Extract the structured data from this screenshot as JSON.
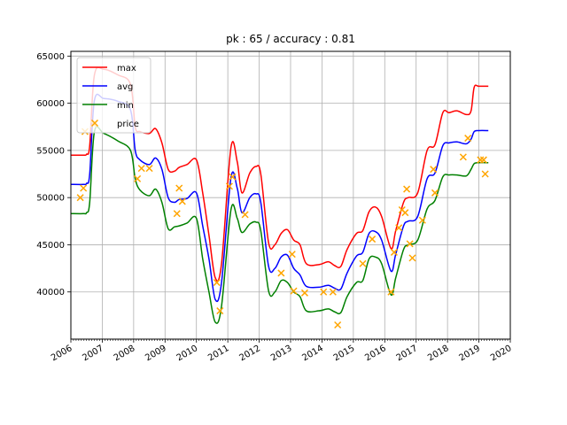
{
  "chart_data": {
    "type": "line",
    "title": "pk : 65 / accuracy : 0.81",
    "xlabel": "",
    "ylabel": "",
    "xlim": [
      2006.0,
      2020.0
    ],
    "ylim": [
      35000,
      65500
    ],
    "grid": true,
    "legend_position": "top-left",
    "x_ticks": [
      "2006",
      "2007",
      "2008",
      "2009",
      "2010",
      "2011",
      "2012",
      "2013",
      "2014",
      "2015",
      "2016",
      "2017",
      "2018",
      "2019",
      "2020"
    ],
    "y_ticks": [
      "40000",
      "45000",
      "50000",
      "55000",
      "60000",
      "65000"
    ],
    "colors": {
      "max": "#ff0000",
      "avg": "#0000ff",
      "min": "#008000",
      "price": "#ffa500"
    },
    "series": [
      {
        "name": "max",
        "x": [
          2006.0,
          2006.4,
          2006.5,
          2006.6,
          2006.75,
          2007.05,
          2007.5,
          2007.9,
          2008.05,
          2008.2,
          2008.5,
          2008.7,
          2008.9,
          2009.1,
          2009.3,
          2009.45,
          2009.7,
          2010.0,
          2010.2,
          2010.4,
          2010.6,
          2010.8,
          2011.1,
          2011.3,
          2011.45,
          2011.7,
          2011.9,
          2012.05,
          2012.3,
          2012.5,
          2012.7,
          2012.9,
          2013.1,
          2013.3,
          2013.5,
          2013.9,
          2014.2,
          2014.4,
          2014.6,
          2014.8,
          2015.1,
          2015.3,
          2015.5,
          2015.7,
          2015.9,
          2016.2,
          2016.35,
          2016.6,
          2016.75,
          2017.05,
          2017.35,
          2017.6,
          2017.85,
          2018.05,
          2018.3,
          2018.6,
          2018.75,
          2018.85,
          2019.0,
          2019.3
        ],
        "y": [
          54500,
          54500,
          54600,
          55500,
          63000,
          63600,
          63000,
          62000,
          57500,
          57000,
          56800,
          57300,
          55800,
          53000,
          52800,
          53200,
          53500,
          54000,
          50500,
          46000,
          41500,
          43000,
          55300,
          53800,
          50500,
          52600,
          53300,
          52500,
          45200,
          45000,
          46200,
          46600,
          45500,
          45000,
          43000,
          42900,
          43200,
          42800,
          42700,
          44500,
          46200,
          46500,
          48500,
          49000,
          48000,
          44600,
          46500,
          49500,
          50000,
          50500,
          55000,
          55600,
          59000,
          59000,
          59200,
          58800,
          59200,
          61700,
          61800,
          61800
        ]
      },
      {
        "name": "avg",
        "x": [
          2006.0,
          2006.4,
          2006.5,
          2006.6,
          2006.75,
          2007.05,
          2007.5,
          2007.9,
          2008.05,
          2008.2,
          2008.5,
          2008.7,
          2008.9,
          2009.1,
          2009.3,
          2009.45,
          2009.7,
          2010.0,
          2010.2,
          2010.4,
          2010.6,
          2010.8,
          2011.1,
          2011.3,
          2011.45,
          2011.7,
          2011.9,
          2012.05,
          2012.3,
          2012.5,
          2012.7,
          2012.9,
          2013.1,
          2013.3,
          2013.5,
          2013.9,
          2014.2,
          2014.4,
          2014.6,
          2014.8,
          2015.1,
          2015.3,
          2015.5,
          2015.7,
          2015.9,
          2016.2,
          2016.35,
          2016.6,
          2016.75,
          2017.05,
          2017.35,
          2017.6,
          2017.85,
          2018.05,
          2018.3,
          2018.6,
          2018.75,
          2018.85,
          2019.0,
          2019.3
        ],
        "y": [
          51400,
          51400,
          51500,
          52500,
          60300,
          60500,
          60200,
          59300,
          55000,
          54000,
          53500,
          54200,
          53000,
          50000,
          49500,
          49800,
          49900,
          50500,
          47000,
          43500,
          39200,
          41000,
          52100,
          51000,
          48400,
          50000,
          50400,
          49500,
          42700,
          42500,
          43700,
          43900,
          42500,
          41800,
          40600,
          40500,
          40700,
          40400,
          40300,
          42000,
          43800,
          44200,
          46200,
          46400,
          45500,
          42200,
          44000,
          47000,
          47500,
          48000,
          52000,
          52600,
          55500,
          55800,
          55900,
          55700,
          56200,
          57000,
          57100,
          57100
        ]
      },
      {
        "name": "min",
        "x": [
          2006.0,
          2006.4,
          2006.5,
          2006.6,
          2006.75,
          2007.05,
          2007.5,
          2007.9,
          2008.05,
          2008.2,
          2008.5,
          2008.7,
          2008.9,
          2009.1,
          2009.3,
          2009.45,
          2009.7,
          2010.0,
          2010.2,
          2010.4,
          2010.6,
          2010.8,
          2011.1,
          2011.3,
          2011.45,
          2011.7,
          2011.9,
          2012.05,
          2012.3,
          2012.5,
          2012.7,
          2012.9,
          2013.1,
          2013.3,
          2013.5,
          2013.9,
          2014.2,
          2014.4,
          2014.6,
          2014.8,
          2015.1,
          2015.3,
          2015.5,
          2015.7,
          2015.9,
          2016.2,
          2016.35,
          2016.6,
          2016.75,
          2017.05,
          2017.35,
          2017.6,
          2017.85,
          2018.05,
          2018.3,
          2018.6,
          2018.75,
          2018.85,
          2019.0,
          2019.3
        ],
        "y": [
          48300,
          48300,
          48400,
          49500,
          57000,
          56800,
          56000,
          55000,
          52000,
          50800,
          50200,
          50900,
          49500,
          46700,
          46900,
          47000,
          47300,
          47800,
          43500,
          40000,
          36800,
          38500,
          48700,
          47800,
          46300,
          47200,
          47400,
          46500,
          40100,
          40000,
          41200,
          41000,
          40000,
          39500,
          38000,
          38000,
          38200,
          37900,
          37800,
          39500,
          41000,
          41200,
          43500,
          43700,
          43000,
          39700,
          41500,
          44500,
          45000,
          45500,
          48800,
          49700,
          52200,
          52400,
          52400,
          52300,
          53000,
          53600,
          53700,
          53700
        ]
      },
      {
        "name": "price",
        "marker": "x",
        "x": [
          2006.3,
          2006.4,
          2006.72,
          2008.12,
          2008.25,
          2008.5,
          2009.38,
          2009.45,
          2009.55,
          2010.65,
          2010.75,
          2011.05,
          2011.15,
          2011.55,
          2012.7,
          2013.05,
          2013.1,
          2013.45,
          2014.05,
          2014.35,
          2014.5,
          2015.3,
          2015.6,
          2016.2,
          2016.3,
          2016.45,
          2016.55,
          2016.65,
          2016.7,
          2016.8,
          2016.88,
          2017.2,
          2017.55,
          2017.6,
          2018.5,
          2018.65,
          2019.05,
          2019.15,
          2019.2,
          2006.45
        ],
        "y": [
          50000,
          51000,
          57800,
          52000,
          53100,
          53100,
          48300,
          51000,
          49600,
          41000,
          38000,
          51200,
          52200,
          48200,
          42000,
          44000,
          40100,
          39900,
          40000,
          40000,
          36500,
          43000,
          45600,
          40000,
          44200,
          46800,
          48700,
          48400,
          50900,
          45100,
          43600,
          47600,
          53000,
          50500,
          54300,
          56300,
          54000,
          54000,
          52500,
          57000
        ]
      }
    ]
  }
}
